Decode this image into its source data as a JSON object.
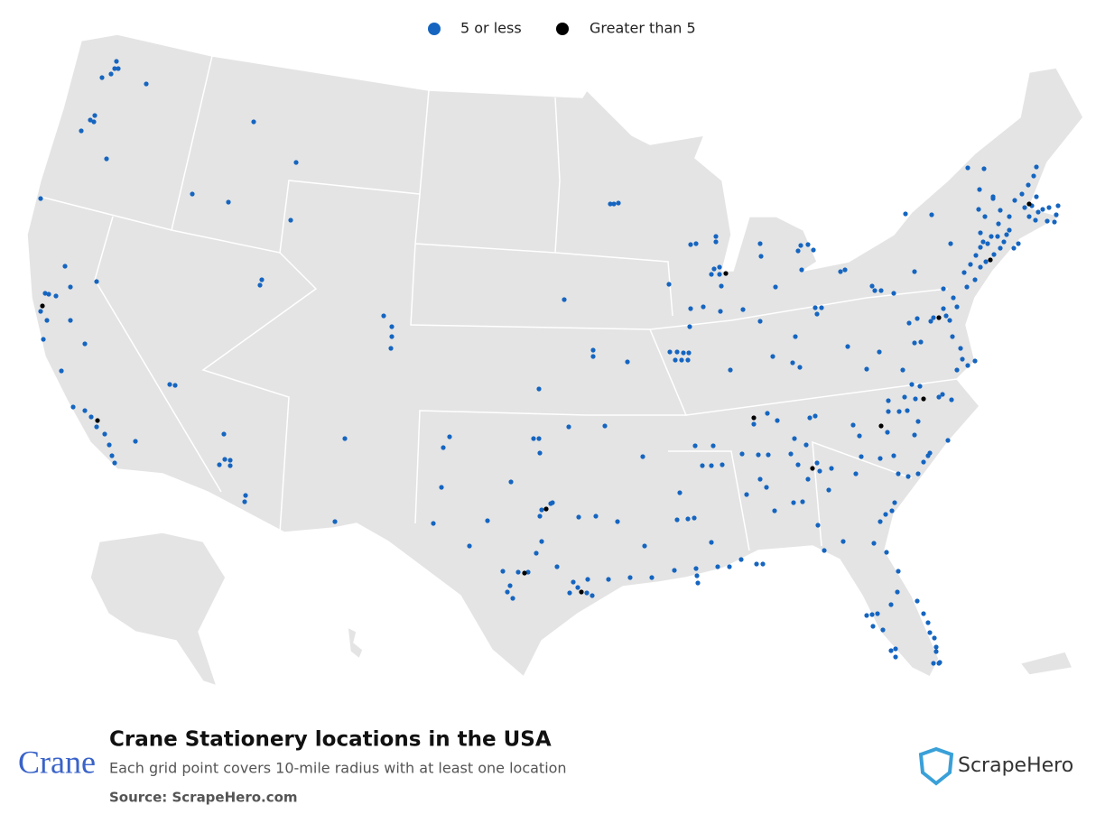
{
  "legend": [
    {
      "label": "5 or less",
      "color": "#1565c0"
    },
    {
      "label": "Greater than 5",
      "color": "#000000"
    }
  ],
  "title": "Crane Stationery locations in the USA",
  "subtitle": "Each grid point covers 10-mile radius with at least one location",
  "source": "Source: ScrapeHero.com",
  "brand": "Crane",
  "logo": "ScrapeHero"
}
